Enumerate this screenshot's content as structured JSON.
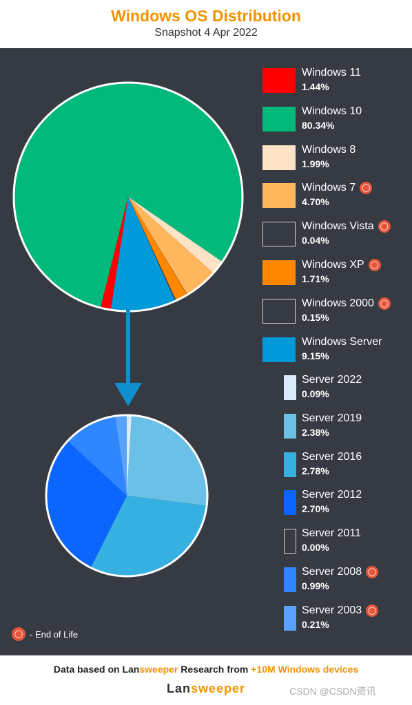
{
  "title": "Windows OS Distribution",
  "subtitle": "Snapshot 4 Apr 2022",
  "legend": {
    "eol_label": "- End of Life"
  },
  "footer": {
    "note_prefix": "Data based on Lan",
    "note_brand_accent": "sweeper",
    "note_middle": " Research from ",
    "note_highlight": "+10M Windows devices",
    "logo_part1": "Lan",
    "logo_part2": "sweeper",
    "watermark": "CSDN @CSDN资讯"
  },
  "chart_data": [
    {
      "type": "pie",
      "title": "Windows OS Distribution",
      "series": [
        {
          "name": "Windows 11",
          "value": 1.44,
          "label": "1.44%",
          "color": "#ff0000",
          "eol": false
        },
        {
          "name": "Windows 10",
          "value": 80.34,
          "label": "80.34%",
          "color": "#00b97a",
          "eol": false
        },
        {
          "name": "Windows 8",
          "value": 1.99,
          "label": "1.99%",
          "color": "#fde3c6",
          "eol": false
        },
        {
          "name": "Windows 7",
          "value": 4.7,
          "label": "4.70%",
          "color": "#ffb65c",
          "eol": true
        },
        {
          "name": "Windows Vista",
          "value": 0.04,
          "label": "0.04%",
          "color": "#363a42",
          "eol": true
        },
        {
          "name": "Windows XP",
          "value": 1.71,
          "label": "1.71%",
          "color": "#ff8800",
          "eol": true
        },
        {
          "name": "Windows 2000",
          "value": 0.15,
          "label": "0.15%",
          "color": "#363a42",
          "eol": true
        },
        {
          "name": "Windows Server",
          "value": 9.15,
          "label": "9.15%",
          "color": "#0099d9",
          "eol": false
        }
      ]
    },
    {
      "type": "pie",
      "series": [
        {
          "name": "Server 2022",
          "value": 0.09,
          "label": "0.09%",
          "color": "#d9ecf7",
          "eol": false
        },
        {
          "name": "Server 2019",
          "value": 2.38,
          "label": "2.38%",
          "color": "#6ac0e6",
          "eol": false
        },
        {
          "name": "Server 2016",
          "value": 2.78,
          "label": "2.78%",
          "color": "#35b0e0",
          "eol": false
        },
        {
          "name": "Server 2012",
          "value": 2.7,
          "label": "2.70%",
          "color": "#0a66ff",
          "eol": false
        },
        {
          "name": "Server 2011",
          "value": 0.0,
          "label": "0.00%",
          "color": "#363a42",
          "eol": false
        },
        {
          "name": "Server 2008",
          "value": 0.99,
          "label": "0.99%",
          "color": "#2f86ff",
          "eol": true
        },
        {
          "name": "Server 2003",
          "value": 0.21,
          "label": "0.21%",
          "color": "#5aa2ff",
          "eol": true
        }
      ]
    }
  ]
}
